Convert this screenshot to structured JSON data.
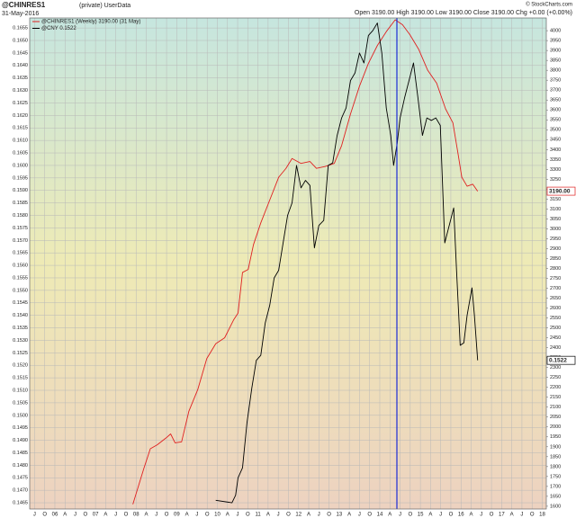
{
  "chart_data": {
    "type": "line",
    "title": "@CHINRES1",
    "title_note": "(private) UserData",
    "subtitle": "31-May-2016",
    "header_stats": "Open 3190.00 High 3190.00 Low 3190.00 Close 3190.00 Chg +0.00 (+0.00%)",
    "copyright": "© StockCharts.com",
    "grid": true,
    "xlim": [
      2005.38,
      2018.1
    ],
    "xticks": [
      {
        "value": 2005.5,
        "label": "J"
      },
      {
        "value": 2005.75,
        "label": "O"
      },
      {
        "value": 2006,
        "label": "06"
      },
      {
        "value": 2006.25,
        "label": "A"
      },
      {
        "value": 2006.5,
        "label": "J"
      },
      {
        "value": 2006.75,
        "label": "O"
      },
      {
        "value": 2007,
        "label": "07"
      },
      {
        "value": 2007.25,
        "label": "A"
      },
      {
        "value": 2007.5,
        "label": "J"
      },
      {
        "value": 2007.75,
        "label": "O"
      },
      {
        "value": 2008,
        "label": "08"
      },
      {
        "value": 2008.25,
        "label": "A"
      },
      {
        "value": 2008.5,
        "label": "J"
      },
      {
        "value": 2008.75,
        "label": "O"
      },
      {
        "value": 2009,
        "label": "09"
      },
      {
        "value": 2009.25,
        "label": "A"
      },
      {
        "value": 2009.5,
        "label": "J"
      },
      {
        "value": 2009.75,
        "label": "O"
      },
      {
        "value": 2010,
        "label": "10"
      },
      {
        "value": 2010.25,
        "label": "A"
      },
      {
        "value": 2010.5,
        "label": "J"
      },
      {
        "value": 2010.75,
        "label": "O"
      },
      {
        "value": 2011,
        "label": "11"
      },
      {
        "value": 2011.25,
        "label": "A"
      },
      {
        "value": 2011.5,
        "label": "J"
      },
      {
        "value": 2011.75,
        "label": "O"
      },
      {
        "value": 2012,
        "label": "12"
      },
      {
        "value": 2012.25,
        "label": "A"
      },
      {
        "value": 2012.5,
        "label": "J"
      },
      {
        "value": 2012.75,
        "label": "O"
      },
      {
        "value": 2013,
        "label": "13"
      },
      {
        "value": 2013.25,
        "label": "A"
      },
      {
        "value": 2013.5,
        "label": "J"
      },
      {
        "value": 2013.75,
        "label": "O"
      },
      {
        "value": 2014,
        "label": "14"
      },
      {
        "value": 2014.25,
        "label": "A"
      },
      {
        "value": 2014.5,
        "label": "J"
      },
      {
        "value": 2014.75,
        "label": "O"
      },
      {
        "value": 2015,
        "label": "15"
      },
      {
        "value": 2015.25,
        "label": "A"
      },
      {
        "value": 2015.5,
        "label": "J"
      },
      {
        "value": 2015.75,
        "label": "O"
      },
      {
        "value": 2016,
        "label": "16"
      },
      {
        "value": 2016.25,
        "label": "A"
      },
      {
        "value": 2016.5,
        "label": "J"
      },
      {
        "value": 2016.75,
        "label": "O"
      },
      {
        "value": 2017,
        "label": "17"
      },
      {
        "value": 2017.25,
        "label": "A"
      },
      {
        "value": 2017.5,
        "label": "J"
      },
      {
        "value": 2017.75,
        "label": "O"
      },
      {
        "value": 2018,
        "label": "18"
      }
    ],
    "ylim": [
      0.14625,
      0.1659
    ],
    "yticks": [
      0.1465,
      {
        "value": 0.147,
        "label": "0.1470"
      },
      0.1475,
      {
        "value": 0.148,
        "label": "0.1480"
      },
      0.1485,
      {
        "value": 0.149,
        "label": "0.1490"
      },
      0.1495,
      {
        "value": 0.15,
        "label": "0.1500"
      },
      0.1505,
      {
        "value": 0.151,
        "label": "0.1510"
      },
      0.1515,
      {
        "value": 0.152,
        "label": "0.1520"
      },
      0.1525,
      {
        "value": 0.153,
        "label": "0.1530"
      },
      0.1535,
      {
        "value": 0.154,
        "label": "0.1540"
      },
      0.1545,
      {
        "value": 0.155,
        "label": "0.1550"
      },
      0.1555,
      {
        "value": 0.156,
        "label": "0.1560"
      },
      0.1565,
      {
        "value": 0.157,
        "label": "0.1570"
      },
      0.1575,
      {
        "value": 0.158,
        "label": "0.1580"
      },
      0.1585,
      {
        "value": 0.159,
        "label": "0.1590"
      },
      0.1595,
      {
        "value": 0.16,
        "label": "0.1600"
      },
      0.1605,
      {
        "value": 0.161,
        "label": "0.1610"
      },
      0.1615,
      {
        "value": 0.162,
        "label": "0.1620"
      },
      0.1625,
      {
        "value": 0.163,
        "label": "0.1630"
      },
      0.1635,
      {
        "value": 0.164,
        "label": "0.1640"
      },
      0.1645,
      {
        "value": 0.165,
        "label": "0.1650"
      },
      0.1655
    ],
    "y2lim": [
      1586,
      4064
    ],
    "y2ticks": [
      1600,
      1650,
      1700,
      1750,
      1800,
      1850,
      1900,
      1950,
      2000,
      2050,
      2100,
      2150,
      2200,
      2250,
      2300,
      2350,
      2400,
      2450,
      2500,
      2550,
      2600,
      2650,
      2700,
      2750,
      2800,
      2850,
      2900,
      2950,
      3000,
      3050,
      3100,
      3150,
      3200,
      3250,
      3300,
      3350,
      3400,
      3450,
      3500,
      3550,
      3600,
      3650,
      3700,
      3750,
      3800,
      3850,
      3900,
      3950,
      4000
    ],
    "series": [
      {
        "name": "@CHINRES1 (Weekly) 3190.00 (31 May)",
        "color": "#e02020",
        "axis": "y2",
        "last_value_label": "3190.00",
        "x": [
          2007.92,
          2008.19,
          2008.35,
          2008.52,
          2008.74,
          2008.85,
          2008.96,
          2009.12,
          2009.3,
          2009.52,
          2009.74,
          2009.96,
          2010.18,
          2010.4,
          2010.51,
          2010.62,
          2010.76,
          2010.89,
          2011.07,
          2011.29,
          2011.51,
          2011.69,
          2011.84,
          2012.06,
          2012.28,
          2012.44,
          2012.66,
          2012.88,
          2013.06,
          2013.28,
          2013.5,
          2013.72,
          2013.94,
          2014.16,
          2014.38,
          2014.56,
          2014.74,
          2014.96,
          2015.18,
          2015.4,
          2015.62,
          2015.8,
          2015.93,
          2016.02,
          2016.15,
          2016.29,
          2016.41
        ],
        "values": [
          1610,
          1790,
          1890,
          1910,
          1945,
          1965,
          1920,
          1925,
          2080,
          2190,
          2345,
          2420,
          2450,
          2540,
          2575,
          2780,
          2795,
          2920,
          3030,
          3145,
          3260,
          3305,
          3355,
          3330,
          3340,
          3305,
          3315,
          3330,
          3420,
          3580,
          3720,
          3835,
          3925,
          3995,
          4055,
          4030,
          3980,
          3905,
          3800,
          3735,
          3605,
          3535,
          3375,
          3260,
          3215,
          3225,
          3190
        ]
      },
      {
        "name": "@CNY 0.1522",
        "color": "#000000",
        "last_value_label": "0.1522",
        "x": [
          2009.96,
          2010.36,
          2010.45,
          2010.51,
          2010.62,
          2010.73,
          2010.85,
          2010.96,
          2011.07,
          2011.18,
          2011.29,
          2011.4,
          2011.51,
          2011.62,
          2011.73,
          2011.84,
          2011.95,
          2012.06,
          2012.17,
          2012.28,
          2012.39,
          2012.5,
          2012.62,
          2012.73,
          2012.84,
          2012.95,
          2013.06,
          2013.17,
          2013.28,
          2013.39,
          2013.5,
          2013.61,
          2013.72,
          2013.83,
          2013.94,
          2014.05,
          2014.16,
          2014.27,
          2014.34,
          2014.43,
          2014.5,
          2014.61,
          2014.72,
          2014.83,
          2014.94,
          2015.05,
          2015.16,
          2015.27,
          2015.38,
          2015.49,
          2015.6,
          2015.71,
          2015.82,
          2015.89,
          2015.98,
          2016.07,
          2016.15,
          2016.27,
          2016.33,
          2016.41
        ],
        "values": [
          0.1466,
          0.1465,
          0.1468,
          0.1475,
          0.1479,
          0.1497,
          0.1511,
          0.1522,
          0.1524,
          0.1537,
          0.1544,
          0.1555,
          0.1558,
          0.1569,
          0.158,
          0.1585,
          0.16,
          0.1591,
          0.1594,
          0.1592,
          0.1567,
          0.1576,
          0.1578,
          0.16,
          0.1601,
          0.1612,
          0.1619,
          0.1623,
          0.1634,
          0.1637,
          0.1645,
          0.1641,
          0.1652,
          0.1654,
          0.1657,
          0.1645,
          0.1623,
          0.1612,
          0.16,
          0.1609,
          0.1619,
          0.1627,
          0.1634,
          0.1641,
          0.1627,
          0.1612,
          0.1619,
          0.1618,
          0.1619,
          0.1616,
          0.1569,
          0.1576,
          0.1583,
          0.1558,
          0.1528,
          0.1529,
          0.154,
          0.1551,
          0.154,
          0.1522
        ]
      }
    ]
  }
}
